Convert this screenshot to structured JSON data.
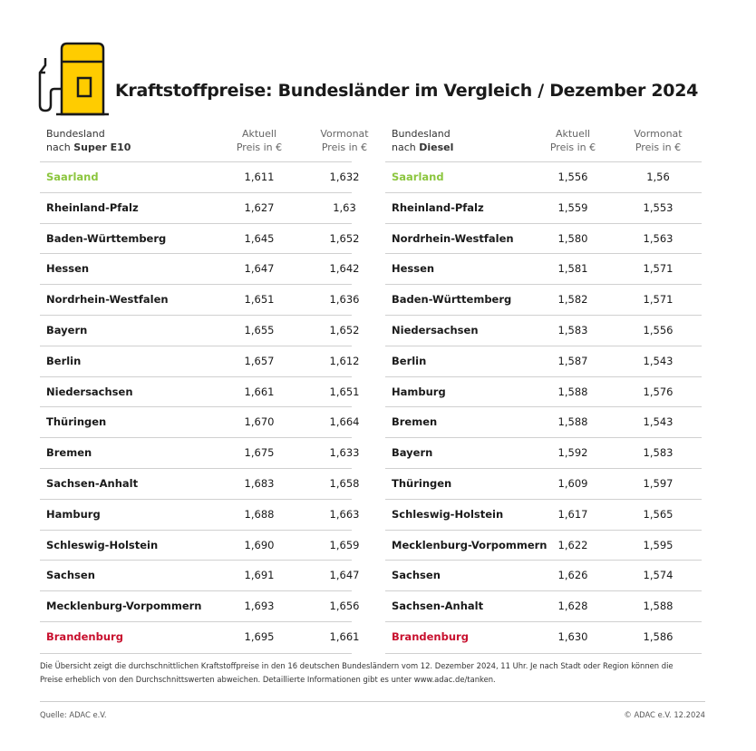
{
  "header": {
    "title": "Kraftstoffpreise: Bundesländer im Vergleich / Dezember 2024"
  },
  "tables": [
    {
      "columns": [
        {
          "line1": "Bundesland",
          "line2_prefix": "nach",
          "line2_bold": "Super E10"
        },
        {
          "line1": "Aktuell",
          "line2": "Preis in €"
        },
        {
          "line1": "Vormonat",
          "line2": "Preis in €"
        }
      ],
      "rows": [
        [
          "Saarland",
          "1,611",
          "1,632"
        ],
        [
          "Rheinland-Pfalz",
          "1,627",
          "1,63"
        ],
        [
          "Baden-Württemberg",
          "1,645",
          "1,652"
        ],
        [
          "Hessen",
          "1,647",
          "1,642"
        ],
        [
          "Nordrhein-Westfalen",
          "1,651",
          "1,636"
        ],
        [
          "Bayern",
          "1,655",
          "1,652"
        ],
        [
          "Berlin",
          "1,657",
          "1,612"
        ],
        [
          "Niedersachsen",
          "1,661",
          "1,651"
        ],
        [
          "Thüringen",
          "1,670",
          "1,664"
        ],
        [
          "Bremen",
          "1,675",
          "1,633"
        ],
        [
          "Sachsen-Anhalt",
          "1,683",
          "1,658"
        ],
        [
          "Hamburg",
          "1,688",
          "1,663"
        ],
        [
          "Schleswig-Holstein",
          "1,690",
          "1,659"
        ],
        [
          "Sachsen",
          "1,691",
          "1,647"
        ],
        [
          "Mecklenburg-Vorpommern",
          "1,693",
          "1,656"
        ],
        [
          "Brandenburg",
          "1,695",
          "1,661"
        ]
      ]
    },
    {
      "columns": [
        {
          "line1": "Bundesland",
          "line2_prefix": "nach",
          "line2_bold": "Diesel"
        },
        {
          "line1": "Aktuell",
          "line2": "Preis in €"
        },
        {
          "line1": "Vormonat",
          "line2": "Preis in €"
        }
      ],
      "rows": [
        [
          "Saarland",
          "1,556",
          "1,56"
        ],
        [
          "Rheinland-Pfalz",
          "1,559",
          "1,553"
        ],
        [
          "Nordrhein-Westfalen",
          "1,580",
          "1,563"
        ],
        [
          "Hessen",
          "1,581",
          "1,571"
        ],
        [
          "Baden-Württemberg",
          "1,582",
          "1,571"
        ],
        [
          "Niedersachsen",
          "1,583",
          "1,556"
        ],
        [
          "Berlin",
          "1,587",
          "1,543"
        ],
        [
          "Hamburg",
          "1,588",
          "1,576"
        ],
        [
          "Bremen",
          "1,588",
          "1,543"
        ],
        [
          "Bayern",
          "1,592",
          "1,583"
        ],
        [
          "Thüringen",
          "1,609",
          "1,597"
        ],
        [
          "Schleswig-Holstein",
          "1,617",
          "1,565"
        ],
        [
          "Mecklenburg-Vorpommern",
          "1,622",
          "1,595"
        ],
        [
          "Sachsen",
          "1,626",
          "1,574"
        ],
        [
          "Sachsen-Anhalt",
          "1,628",
          "1,588"
        ],
        [
          "Brandenburg",
          "1,630",
          "1,586"
        ]
      ]
    }
  ],
  "footnote": {
    "line1": "Die Übersicht zeigt die durchschnittlichen Kraftstoffpreise in den 16 deutschen Bundesländern vom 12. Dezember 2024, 11 Uhr. Je nach Stadt oder Region können die",
    "line2": "Preise erheblich von den Durchschnittswerten abweichen. Detaillierte Informationen gibt es unter www.adac.de/tanken."
  },
  "footer": {
    "source": "Quelle: ADAC e.V.",
    "copyright": "© ADAC e.V. 12.2024"
  }
}
